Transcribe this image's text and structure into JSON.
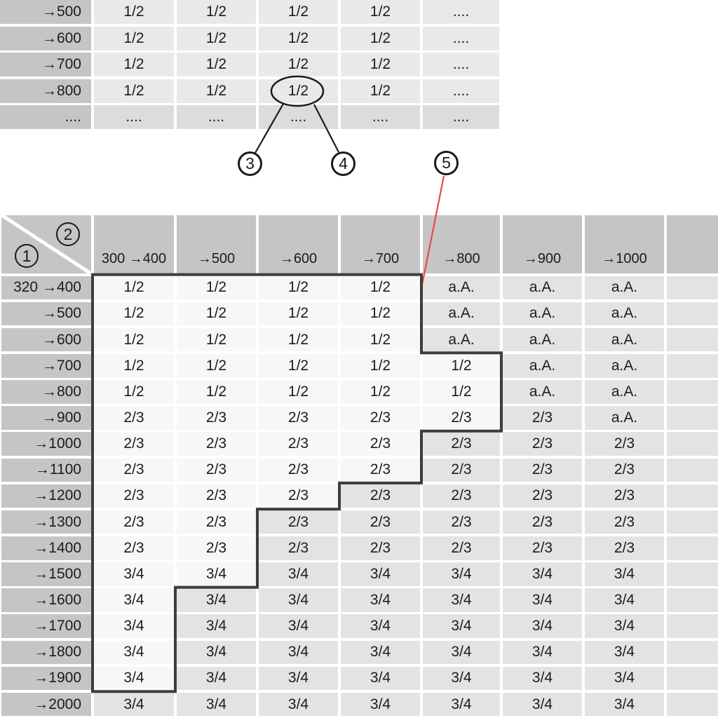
{
  "colors": {
    "header_bg": "#c5c5c5",
    "outside_cell_bg": "#e3e3e3",
    "inside_cell_bg": "#f7f7f7",
    "top_cell_bg": "#e9e9e9",
    "top_dots_cell_bg": "#dcdcdc",
    "step_border": "#3d3d3d",
    "red_line": "#e14b4b",
    "text": "#1c1c1c"
  },
  "callouts": {
    "n1": "1",
    "n2": "2",
    "n3": "3",
    "n4": "4",
    "n5": "5"
  },
  "top_table": {
    "row_labels": [
      "→500",
      "→600",
      "→700",
      "→800",
      "...."
    ],
    "rows": [
      [
        "1/2",
        "1/2",
        "1/2",
        "1/2",
        "...."
      ],
      [
        "1/2",
        "1/2",
        "1/2",
        "1/2",
        "...."
      ],
      [
        "1/2",
        "1/2",
        "1/2",
        "1/2",
        "...."
      ],
      [
        "1/2",
        "1/2",
        "1/2",
        "1/2",
        "...."
      ],
      [
        "....",
        "....",
        "....",
        "....",
        "...."
      ]
    ],
    "highlighted_cell": {
      "row_label": "→800",
      "column_index": 3,
      "value": "1/2"
    }
  },
  "main_table": {
    "corner": {
      "top_right_callout": "2",
      "bottom_left_callout": "1"
    },
    "column_headers": [
      "300 →400",
      "→500",
      "→600",
      "→700",
      "→800",
      "→900",
      "→1000",
      ""
    ],
    "row_labels": [
      "320 →400",
      "→500",
      "→600",
      "→700",
      "→800",
      "→900",
      "→1000",
      "→1100",
      "→1200",
      "→1300",
      "→1400",
      "→1500",
      "→1600",
      "→1700",
      "→1800",
      "→1900",
      "→2000"
    ],
    "rows": [
      [
        "1/2",
        "1/2",
        "1/2",
        "1/2",
        "a.A.",
        "a.A.",
        "a.A.",
        ""
      ],
      [
        "1/2",
        "1/2",
        "1/2",
        "1/2",
        "a.A.",
        "a.A.",
        "a.A.",
        ""
      ],
      [
        "1/2",
        "1/2",
        "1/2",
        "1/2",
        "a.A.",
        "a.A.",
        "a.A.",
        ""
      ],
      [
        "1/2",
        "1/2",
        "1/2",
        "1/2",
        "1/2",
        "a.A.",
        "a.A.",
        ""
      ],
      [
        "1/2",
        "1/2",
        "1/2",
        "1/2",
        "1/2",
        "a.A.",
        "a.A.",
        ""
      ],
      [
        "2/3",
        "2/3",
        "2/3",
        "2/3",
        "2/3",
        "2/3",
        "a.A.",
        ""
      ],
      [
        "2/3",
        "2/3",
        "2/3",
        "2/3",
        "2/3",
        "2/3",
        "2/3",
        ""
      ],
      [
        "2/3",
        "2/3",
        "2/3",
        "2/3",
        "2/3",
        "2/3",
        "2/3",
        ""
      ],
      [
        "2/3",
        "2/3",
        "2/3",
        "2/3",
        "2/3",
        "2/3",
        "2/3",
        ""
      ],
      [
        "2/3",
        "2/3",
        "2/3",
        "2/3",
        "2/3",
        "2/3",
        "2/3",
        ""
      ],
      [
        "2/3",
        "2/3",
        "2/3",
        "2/3",
        "2/3",
        "2/3",
        "2/3",
        ""
      ],
      [
        "3/4",
        "3/4",
        "3/4",
        "3/4",
        "3/4",
        "3/4",
        "3/4",
        ""
      ],
      [
        "3/4",
        "3/4",
        "3/4",
        "3/4",
        "3/4",
        "3/4",
        "3/4",
        ""
      ],
      [
        "3/4",
        "3/4",
        "3/4",
        "3/4",
        "3/4",
        "3/4",
        "3/4",
        ""
      ],
      [
        "3/4",
        "3/4",
        "3/4",
        "3/4",
        "3/4",
        "3/4",
        "3/4",
        ""
      ],
      [
        "3/4",
        "3/4",
        "3/4",
        "3/4",
        "3/4",
        "3/4",
        "3/4",
        ""
      ],
      [
        "3/4",
        "3/4",
        "3/4",
        "3/4",
        "3/4",
        "3/4",
        "3/4",
        ""
      ]
    ],
    "inside_boundary_counts": [
      4,
      4,
      4,
      5,
      5,
      5,
      4,
      4,
      3,
      2,
      2,
      2,
      1,
      1,
      1,
      1,
      0
    ]
  }
}
